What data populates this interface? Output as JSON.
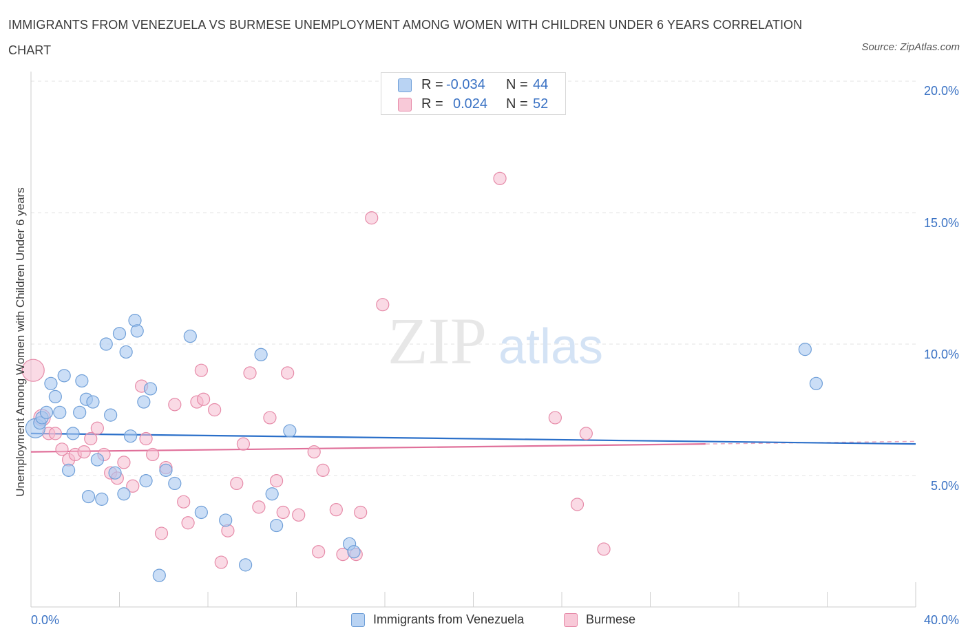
{
  "title": "IMMIGRANTS FROM VENEZUELA VS BURMESE UNEMPLOYMENT AMONG WOMEN WITH CHILDREN UNDER 6 YEARS CORRELATION CHART",
  "source": "Source: ZipAtlas.com",
  "watermark": {
    "zip": "ZIP",
    "atlas": "atlas"
  },
  "legend": {
    "rows": [
      {
        "r_label": "R =",
        "r_value": "-0.034",
        "n_label": "N =",
        "n_value": "44"
      },
      {
        "r_label": "R =",
        "r_value": "0.024",
        "n_label": "N =",
        "n_value": "52"
      }
    ]
  },
  "colors": {
    "blue_fill": "#a9c8f0",
    "blue_stroke": "#6f9fd8",
    "blue_line": "#2a6fc9",
    "pink_fill": "#f6bccf",
    "pink_stroke": "#e68aa8",
    "pink_line": "#e0709a",
    "grid": "#e3e3e3",
    "axis_text": "#3a72c4"
  },
  "chart_data": {
    "type": "scatter",
    "title": "IMMIGRANTS FROM VENEZUELA VS BURMESE UNEMPLOYMENT AMONG WOMEN WITH CHILDREN UNDER 6 YEARS CORRELATION CHART",
    "xlabel": "",
    "ylabel": "Unemployment Among Women with Children Under 6 years",
    "xlim": [
      0,
      40
    ],
    "ylim": [
      0,
      20
    ],
    "x_tick_labels": [
      "0.0%",
      "40.0%"
    ],
    "y_ticks": [
      5,
      10,
      15,
      20
    ],
    "y_tick_labels": [
      "5.0%",
      "10.0%",
      "15.0%",
      "20.0%"
    ],
    "grid": true,
    "legend_position": "top-center",
    "series": [
      {
        "name": "Immigrants from Venezuela",
        "color": "#a9c8f0",
        "R": -0.034,
        "N": 44,
        "trend": {
          "x": [
            0,
            40
          ],
          "y": [
            6.6,
            6.2
          ]
        },
        "points": [
          [
            0.2,
            6.8,
            14
          ],
          [
            0.4,
            7.0,
            9
          ],
          [
            0.5,
            7.2,
            9
          ],
          [
            0.7,
            7.4,
            9
          ],
          [
            0.9,
            8.5,
            9
          ],
          [
            1.1,
            8.0,
            9
          ],
          [
            1.3,
            7.4,
            9
          ],
          [
            1.5,
            8.8,
            9
          ],
          [
            1.7,
            5.2,
            9
          ],
          [
            1.9,
            6.6,
            9
          ],
          [
            2.2,
            7.4,
            9
          ],
          [
            2.3,
            8.6,
            9
          ],
          [
            2.5,
            7.9,
            9
          ],
          [
            2.6,
            4.2,
            9
          ],
          [
            2.8,
            7.8,
            9
          ],
          [
            3.0,
            5.6,
            9
          ],
          [
            3.2,
            4.1,
            9
          ],
          [
            3.4,
            10.0,
            9
          ],
          [
            3.6,
            7.3,
            9
          ],
          [
            3.8,
            5.1,
            9
          ],
          [
            4.0,
            10.4,
            9
          ],
          [
            4.2,
            4.3,
            9
          ],
          [
            4.3,
            9.7,
            9
          ],
          [
            4.5,
            6.5,
            9
          ],
          [
            4.7,
            10.9,
            9
          ],
          [
            4.8,
            10.5,
            9
          ],
          [
            5.1,
            7.8,
            9
          ],
          [
            5.2,
            4.8,
            9
          ],
          [
            5.4,
            8.3,
            9
          ],
          [
            5.8,
            1.2,
            9
          ],
          [
            6.1,
            5.2,
            9
          ],
          [
            6.5,
            4.7,
            9
          ],
          [
            7.2,
            10.3,
            9
          ],
          [
            7.7,
            3.6,
            9
          ],
          [
            8.8,
            3.3,
            9
          ],
          [
            9.7,
            1.6,
            9
          ],
          [
            10.4,
            9.6,
            9
          ],
          [
            10.9,
            4.3,
            9
          ],
          [
            11.1,
            3.1,
            9
          ],
          [
            11.7,
            6.7,
            9
          ],
          [
            14.4,
            2.4,
            9
          ],
          [
            14.6,
            2.1,
            9
          ],
          [
            35.0,
            9.8,
            9
          ],
          [
            35.5,
            8.5,
            9
          ]
        ]
      },
      {
        "name": "Burmese",
        "color": "#f6bccf",
        "R": 0.024,
        "N": 52,
        "trend": {
          "x": [
            0,
            30.5
          ],
          "y": [
            5.9,
            6.2
          ]
        },
        "dashed_extension": {
          "x": [
            30.5,
            40
          ],
          "y": [
            6.2,
            6.3
          ]
        },
        "points": [
          [
            0.1,
            9.0,
            16
          ],
          [
            0.5,
            7.2,
            12
          ],
          [
            0.8,
            6.6,
            9
          ],
          [
            1.1,
            6.6,
            9
          ],
          [
            1.4,
            6.0,
            9
          ],
          [
            1.7,
            5.6,
            9
          ],
          [
            2.0,
            5.8,
            9
          ],
          [
            2.4,
            5.9,
            9
          ],
          [
            2.7,
            6.4,
            9
          ],
          [
            3.0,
            6.8,
            9
          ],
          [
            3.3,
            5.8,
            9
          ],
          [
            3.6,
            5.1,
            9
          ],
          [
            3.9,
            4.9,
            9
          ],
          [
            4.2,
            5.5,
            9
          ],
          [
            4.6,
            4.6,
            9
          ],
          [
            5.0,
            8.4,
            9
          ],
          [
            5.2,
            6.4,
            9
          ],
          [
            5.5,
            5.8,
            9
          ],
          [
            5.9,
            2.8,
            9
          ],
          [
            6.1,
            5.3,
            9
          ],
          [
            6.5,
            7.7,
            9
          ],
          [
            6.9,
            4.0,
            9
          ],
          [
            7.1,
            3.2,
            9
          ],
          [
            7.5,
            7.8,
            9
          ],
          [
            7.8,
            7.9,
            9
          ],
          [
            7.7,
            9.0,
            9
          ],
          [
            8.3,
            7.5,
            9
          ],
          [
            8.6,
            1.7,
            9
          ],
          [
            8.9,
            2.9,
            9
          ],
          [
            9.3,
            4.7,
            9
          ],
          [
            9.6,
            6.2,
            9
          ],
          [
            9.9,
            8.9,
            9
          ],
          [
            10.3,
            3.8,
            9
          ],
          [
            10.8,
            7.2,
            9
          ],
          [
            11.1,
            4.8,
            9
          ],
          [
            11.4,
            3.6,
            9
          ],
          [
            11.6,
            8.9,
            9
          ],
          [
            12.1,
            3.5,
            9
          ],
          [
            12.8,
            5.9,
            9
          ],
          [
            13.2,
            5.2,
            9
          ],
          [
            13.0,
            2.1,
            9
          ],
          [
            13.8,
            3.7,
            9
          ],
          [
            14.1,
            2.0,
            9
          ],
          [
            14.7,
            2.0,
            9
          ],
          [
            14.9,
            3.6,
            9
          ],
          [
            15.4,
            14.8,
            9
          ],
          [
            15.9,
            11.5,
            9
          ],
          [
            21.2,
            16.3,
            9
          ],
          [
            23.7,
            7.2,
            9
          ],
          [
            24.7,
            3.9,
            9
          ],
          [
            25.1,
            6.6,
            9
          ],
          [
            25.9,
            2.2,
            9
          ]
        ]
      }
    ]
  },
  "bottom_legend": [
    {
      "label": "Immigrants from Venezuela"
    },
    {
      "label": "Burmese"
    }
  ]
}
